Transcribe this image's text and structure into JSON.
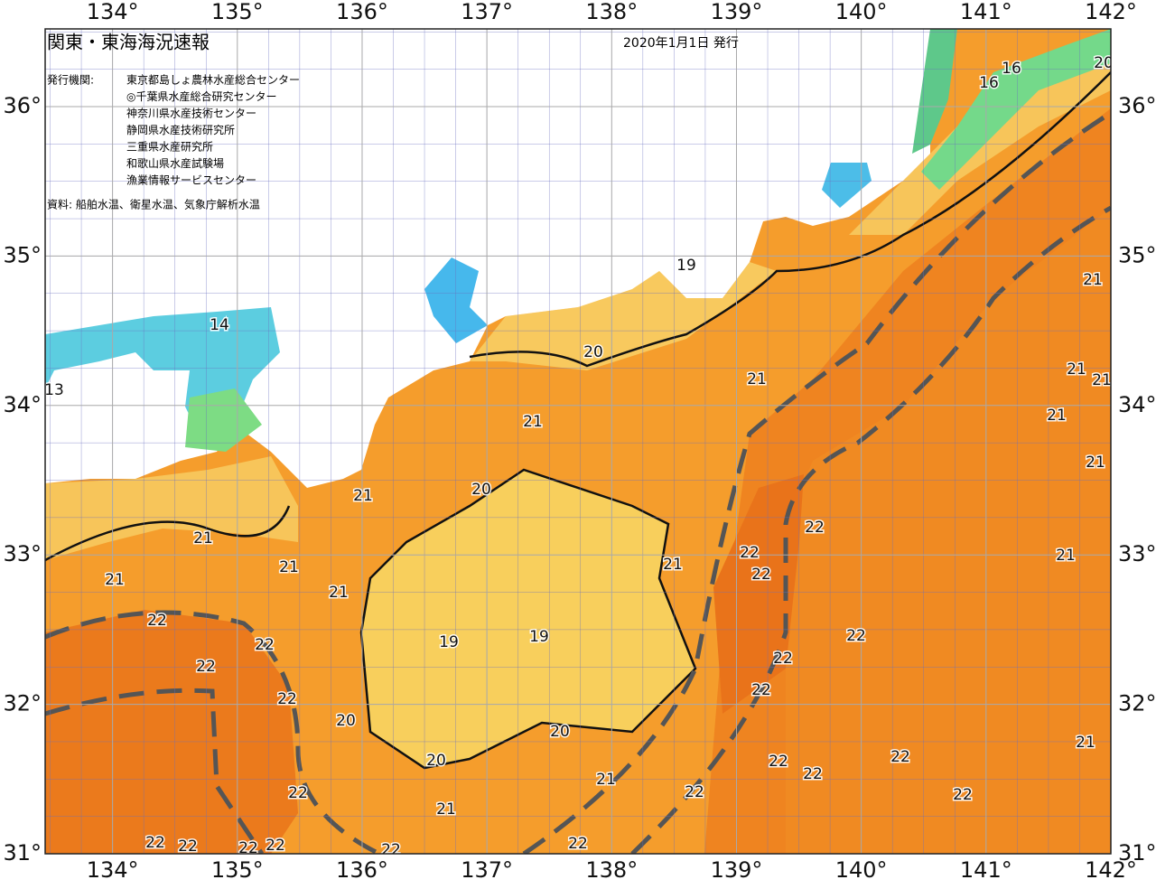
{
  "header": {
    "title": "関東・東海海況速報",
    "issued": "2020年1月1日 発行"
  },
  "issuer_label": "発行機関:",
  "issuers": [
    "東京都島しょ農林水産総合センター",
    "◎千葉県水産総合研究センター",
    "神奈川県水産技術センター",
    "静岡県水産技術研究所",
    "三重県水産研究所",
    "和歌山県水産試験場",
    "漁業情報サービスセンター"
  ],
  "source": "資料: 船舶水温、衛星水温、気象庁解析水温",
  "map": {
    "xlim": [
      133.46,
      142
    ],
    "ylim": [
      31,
      36.52
    ],
    "xticks": [
      {
        "value": 134,
        "label": "134°"
      },
      {
        "value": 135,
        "label": "135°"
      },
      {
        "value": 136,
        "label": "136°"
      },
      {
        "value": 137,
        "label": "137°"
      },
      {
        "value": 138,
        "label": "138°"
      },
      {
        "value": 139,
        "label": "139°"
      },
      {
        "value": 140,
        "label": "140°"
      },
      {
        "value": 141,
        "label": "141°"
      },
      {
        "value": 142,
        "label": "142°"
      }
    ],
    "yticks": [
      {
        "value": 31,
        "label": "31°"
      },
      {
        "value": 32,
        "label": "32°"
      },
      {
        "value": 33,
        "label": "33°"
      },
      {
        "value": 34,
        "label": "34°"
      },
      {
        "value": 35,
        "label": "35°"
      },
      {
        "value": 36,
        "label": "36°"
      }
    ],
    "contour_labels": [
      16,
      16,
      20,
      19,
      20,
      21,
      21,
      20,
      21,
      21,
      21,
      21,
      21,
      22,
      22,
      22,
      22,
      20,
      19,
      19,
      20,
      20,
      21,
      22,
      22,
      22,
      22,
      22,
      22,
      22,
      22,
      22,
      22,
      22,
      21,
      21,
      22,
      22,
      22,
      22,
      22,
      22,
      22,
      21,
      21,
      21,
      21,
      21,
      21,
      21,
      14,
      13
    ]
  }
}
